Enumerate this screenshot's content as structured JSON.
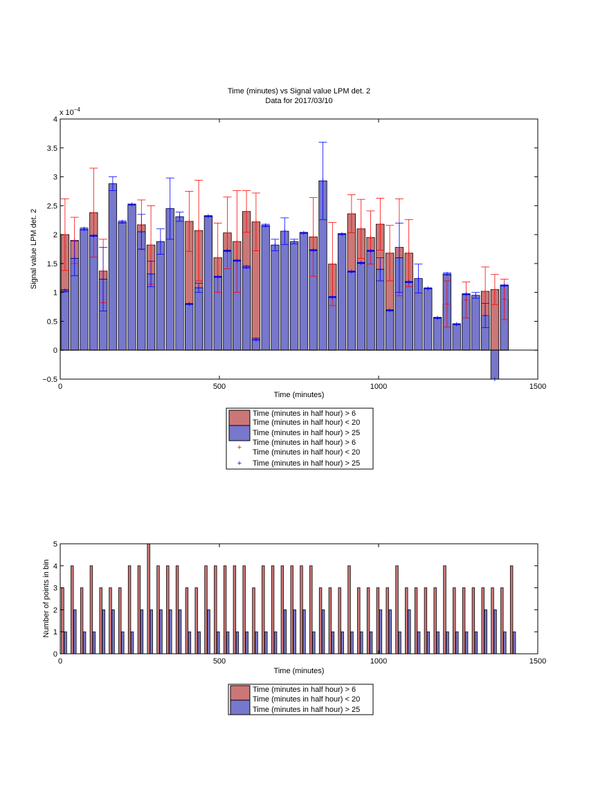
{
  "colors": {
    "red_fill": "#cc7777",
    "blue_fill": "#7777cc",
    "red_err": "#ff0000",
    "blue_err": "#0000ff",
    "edge": "#000000"
  },
  "chart_data": [
    {
      "type": "bar",
      "title": "Time (minutes) vs Signal value LPM det. 2",
      "subtitle": "Data for 2017/03/10",
      "xlabel": "Time (minutes)",
      "ylabel": "Signal value LPM det. 2",
      "y_exponent_label": "x 10",
      "y_exponent": "−4",
      "xlim": [
        0,
        1500
      ],
      "ylim": [
        -0.5,
        4
      ],
      "xticks": [
        "0",
        "500",
        "1000",
        "1500"
      ],
      "yticks": [
        "−0.5",
        "0",
        "0.5",
        "1",
        "1.5",
        "2",
        "2.5",
        "3",
        "3.5",
        "4"
      ],
      "bar_width_minutes": 25,
      "legend": [
        "Time (minutes in half hour) > 6",
        "Time (minutes in half hour) < 20",
        "Time (minutes in half hour) > 25",
        "Time (minutes in half hour) > 6",
        "Time (minutes in half hour) < 20",
        "Time (minutes in half hour) > 25"
      ],
      "x": [
        15,
        45,
        75,
        105,
        135,
        165,
        195,
        225,
        255,
        285,
        315,
        345,
        375,
        405,
        435,
        465,
        495,
        525,
        555,
        585,
        615,
        645,
        675,
        705,
        735,
        765,
        795,
        825,
        855,
        885,
        915,
        945,
        975,
        1005,
        1035,
        1065,
        1095,
        1125,
        1155,
        1185,
        1215,
        1245,
        1275,
        1305,
        1335,
        1365,
        1395,
        1425
      ],
      "series": [
        {
          "values": [
            2.0,
            1.9,
            0,
            2.38,
            1.37,
            0,
            0,
            0,
            2.17,
            1.82,
            0,
            0,
            0,
            2.23,
            2.07,
            0,
            1.6,
            2.03,
            1.88,
            2.4,
            2.22,
            0,
            0,
            0,
            0,
            0,
            1.96,
            0,
            1.49,
            0,
            2.36,
            2.1,
            1.95,
            2.18,
            1.68,
            1.78,
            1.68,
            0,
            0,
            0,
            0.8,
            0,
            0.87,
            0,
            1.02,
            1.05,
            0.88,
            0
          ],
          "err": [
            0.62,
            0.4,
            0,
            0.77,
            0.55,
            0,
            0,
            0,
            0.43,
            0.68,
            0,
            0,
            0,
            0.52,
            0.87,
            0,
            0.6,
            0.62,
            0.88,
            0.36,
            0.5,
            0,
            0,
            0,
            0,
            0,
            0.68,
            0,
            0.72,
            0,
            0.33,
            0.51,
            0.46,
            0.45,
            0.48,
            0.84,
            0.58,
            0,
            0,
            0,
            0.4,
            0,
            0.31,
            0,
            0.42,
            0.26,
            0.35,
            0
          ]
        },
        {
          "values": [
            1.03,
            1.59,
            2.1,
            1.98,
            1.23,
            2.88,
            2.22,
            2.52,
            2.05,
            1.32,
            1.88,
            2.45,
            2.31,
            0.8,
            1.08,
            2.32,
            1.27,
            1.72,
            1.55,
            1.44,
            0.19,
            2.16,
            1.82,
            2.06,
            1.88,
            2.03,
            1.73,
            2.93,
            0.92,
            2.01,
            1.36,
            1.51,
            1.72,
            1.4,
            0.69,
            1.6,
            1.18,
            1.24,
            1.07,
            0.56,
            1.32,
            0.45,
            0.97,
            0.95,
            0.6,
            -0.5,
            1.12,
            0
          ],
          "err": [
            0.02,
            0.3,
            0.02,
            0.01,
            0.55,
            0.12,
            0.02,
            0.01,
            0.3,
            0.22,
            0.22,
            0.53,
            0.08,
            0.01,
            0.08,
            0.01,
            0.01,
            0.01,
            0.01,
            0.02,
            0.02,
            0.02,
            0.1,
            0.23,
            0.04,
            0.01,
            0.01,
            0.67,
            0.01,
            0.01,
            0.01,
            0.01,
            0.01,
            0.2,
            0.01,
            0.6,
            0.01,
            0.25,
            0.01,
            0.01,
            0.02,
            0.01,
            0.01,
            0.05,
            0.21,
            0,
            0.01,
            0
          ]
        }
      ]
    },
    {
      "type": "bar",
      "xlabel": "Time (minutes)",
      "ylabel": "Number of points in bin",
      "xlim": [
        0,
        1500
      ],
      "ylim": [
        0,
        5
      ],
      "xticks": [
        "0",
        "500",
        "1000",
        "1500"
      ],
      "yticks": [
        "0",
        "1",
        "2",
        "3",
        "4",
        "5"
      ],
      "legend": [
        "Time (minutes in half hour) > 6",
        "Time (minutes in half hour) < 20",
        "Time (minutes in half hour) > 25"
      ],
      "x": [
        0,
        30,
        60,
        90,
        120,
        150,
        180,
        210,
        240,
        270,
        300,
        330,
        360,
        390,
        420,
        450,
        480,
        510,
        540,
        570,
        600,
        630,
        660,
        690,
        720,
        750,
        780,
        810,
        840,
        870,
        900,
        930,
        960,
        990,
        1020,
        1050,
        1080,
        1110,
        1140,
        1170,
        1200,
        1230,
        1260,
        1290,
        1320,
        1350,
        1380,
        1410
      ],
      "series": [
        {
          "values": [
            3,
            4,
            3,
            4,
            3,
            3,
            3,
            4,
            4,
            5,
            4,
            4,
            4,
            3,
            3,
            4,
            4,
            4,
            4,
            4,
            3,
            4,
            4,
            4,
            4,
            4,
            4,
            3,
            3,
            3,
            4,
            3,
            3,
            3,
            3,
            4,
            3,
            3,
            3,
            3,
            4,
            3,
            3,
            3,
            3,
            3,
            3,
            4
          ]
        },
        {
          "values": [
            1,
            2,
            1,
            1,
            2,
            2,
            1,
            1,
            2,
            2,
            2,
            2,
            2,
            1,
            1,
            2,
            1,
            1,
            1,
            1,
            1,
            1,
            1,
            2,
            2,
            2,
            1,
            2,
            1,
            1,
            1,
            1,
            1,
            2,
            2,
            1,
            2,
            1,
            1,
            1,
            1,
            1,
            1,
            1,
            2,
            2,
            1,
            1
          ]
        }
      ]
    }
  ]
}
